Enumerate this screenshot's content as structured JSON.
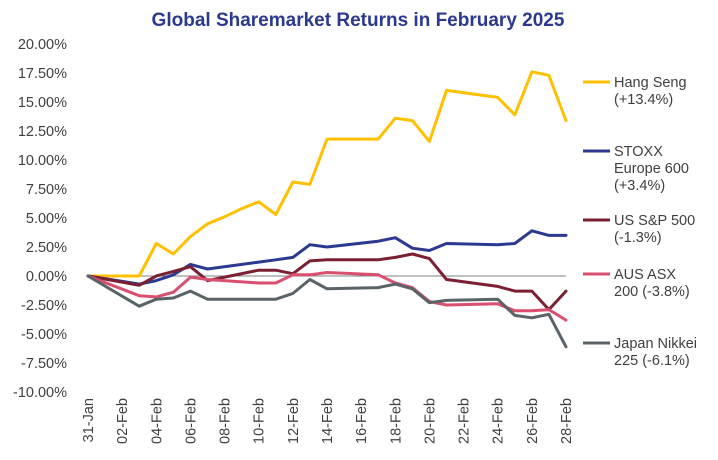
{
  "chart_data": {
    "type": "line",
    "title": "Global Sharemarket Returns in February 2025",
    "xlabel": "",
    "ylabel": "",
    "ylim": [
      -10,
      20
    ],
    "yticks": [
      20,
      17.5,
      15,
      12.5,
      10,
      7.5,
      5,
      2.5,
      0,
      -2.5,
      -5,
      -7.5,
      -10
    ],
    "ytick_labels": [
      "20.00%",
      "17.50%",
      "15.00%",
      "12.50%",
      "10.00%",
      "7.50%",
      "5.00%",
      "2.50%",
      "0.00%",
      "-2.50%",
      "-5.00%",
      "-7.50%",
      "-10.00%"
    ],
    "grid": false,
    "legend_position": "right",
    "categories": [
      "31-Jan",
      "01-Feb",
      "02-Feb",
      "03-Feb",
      "04-Feb",
      "05-Feb",
      "06-Feb",
      "07-Feb",
      "08-Feb",
      "09-Feb",
      "10-Feb",
      "11-Feb",
      "12-Feb",
      "13-Feb",
      "14-Feb",
      "15-Feb",
      "16-Feb",
      "17-Feb",
      "18-Feb",
      "19-Feb",
      "20-Feb",
      "21-Feb",
      "22-Feb",
      "23-Feb",
      "24-Feb",
      "25-Feb",
      "26-Feb",
      "27-Feb",
      "28-Feb"
    ],
    "xtick_labels": [
      "31-Jan",
      "02-Feb",
      "04-Feb",
      "06-Feb",
      "08-Feb",
      "10-Feb",
      "12-Feb",
      "14-Feb",
      "16-Feb",
      "18-Feb",
      "20-Feb",
      "22-Feb",
      "24-Feb",
      "26-Feb",
      "28-Feb"
    ],
    "series": [
      {
        "name": "Hang Seng",
        "legend_lines": [
          "Hang Seng",
          "(+13.4%)"
        ],
        "color": "#ffc000",
        "values": [
          0,
          0,
          0,
          0,
          2.8,
          1.9,
          3.4,
          4.5,
          5.1,
          5.8,
          6.4,
          5.3,
          8.1,
          7.9,
          11.8,
          11.8,
          11.8,
          11.8,
          13.6,
          13.4,
          11.6,
          16.0,
          null,
          null,
          15.4,
          13.9,
          17.6,
          17.3,
          13.4
        ]
      },
      {
        "name": "STOXX Europe 600",
        "legend_lines": [
          "STOXX",
          "Europe 600",
          "(+3.4%)"
        ],
        "color": "#2b3990",
        "values": [
          0,
          null,
          null,
          -0.7,
          -0.4,
          0.1,
          1.0,
          0.6,
          null,
          null,
          1.2,
          1.4,
          1.6,
          2.7,
          2.5,
          null,
          null,
          3.0,
          3.3,
          2.4,
          2.2,
          2.8,
          null,
          null,
          2.7,
          2.8,
          3.9,
          3.5,
          3.5
        ]
      },
      {
        "name": "US S&P 500",
        "legend_lines": [
          "US S&P 500",
          "(-1.3%)"
        ],
        "color": "#7b2032",
        "values": [
          0,
          null,
          null,
          -0.8,
          0.0,
          0.4,
          0.8,
          -0.4,
          null,
          null,
          0.5,
          0.5,
          0.2,
          1.3,
          1.4,
          null,
          null,
          1.4,
          1.6,
          1.9,
          1.5,
          -0.3,
          null,
          null,
          -0.9,
          -1.3,
          -1.3,
          -2.9,
          -1.3
        ]
      },
      {
        "name": "AUS ASX 200",
        "legend_lines": [
          "AUS ASX",
          "200 (-3.8%)"
        ],
        "color": "#d94f6f",
        "values": [
          0,
          null,
          null,
          -1.7,
          -1.8,
          -1.4,
          -0.1,
          -0.3,
          null,
          null,
          -0.6,
          -0.6,
          0.1,
          0.1,
          0.3,
          null,
          null,
          0.1,
          -0.6,
          -1.0,
          -2.2,
          -2.5,
          null,
          null,
          -2.4,
          -3.0,
          -3.0,
          -2.9,
          -3.8
        ]
      },
      {
        "name": "Japan Nikkei 225",
        "legend_lines": [
          "Japan Nikkei",
          "225 (-6.1%)"
        ],
        "color": "#5a6468",
        "values": [
          0,
          null,
          null,
          -2.6,
          -2.0,
          -1.9,
          -1.3,
          -2.0,
          null,
          null,
          -2.0,
          -2.0,
          -1.5,
          -0.3,
          -1.1,
          null,
          null,
          -1.0,
          -0.7,
          -1.1,
          -2.3,
          -2.1,
          null,
          null,
          -2.0,
          -3.4,
          -3.6,
          -3.3,
          -6.1
        ]
      }
    ]
  }
}
